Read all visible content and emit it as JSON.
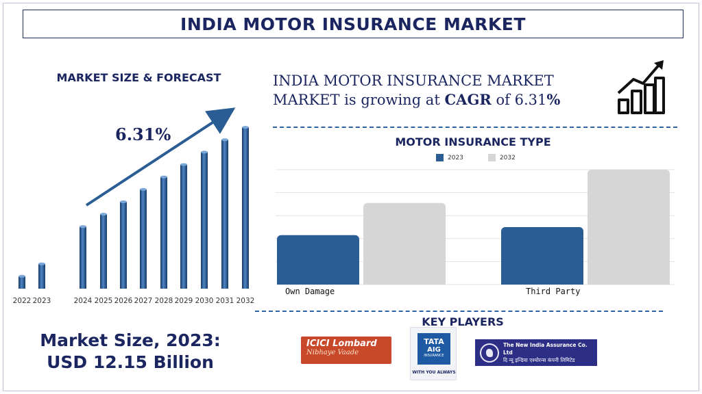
{
  "title": "INDIA MOTOR INSURANCE MARKET",
  "left_heading": "MARKET SIZE & FORECAST",
  "cagr_label": "6.31%",
  "market_text": {
    "line1": "INDIA MOTOR INSURANCE MARKET",
    "line2_prefix": "MARKET is growing at ",
    "line2_cagr": "CAGR",
    "line2_mid": " of 6.31",
    "line2_pct": "%"
  },
  "type_heading": "MOTOR INSURANCE TYPE",
  "key_players_heading": "KEY PLAYERS",
  "market_size": {
    "line1": "Market Size, 2023:",
    "line2": "USD 12.15 Billion"
  },
  "logos": {
    "icici_line1": "ICICI Lombard",
    "icici_line2": "Nibhaye Vaade",
    "tata_line1": "TATA",
    "tata_line2": "AIG",
    "tata_line3": "INSURANCE",
    "tata_tagline": "WITH YOU ALWAYS",
    "nia_line1": "The New India Assurance Co. Ltd",
    "nia_line2": "दि न्यू इन्डिया एश्योरन्स कंपनी लिमिटेड"
  },
  "icons": {
    "growth": "growth-chart-icon"
  },
  "colors": {
    "navy": "#1b2660",
    "bar_blue": "#2a5d94",
    "bar_grey": "#d6d6d6",
    "dash": "#2d61a6"
  },
  "chart_data": [
    {
      "type": "bar",
      "categories": [
        "2022",
        "2023",
        "2024",
        "2025",
        "2026",
        "2027",
        "2028",
        "2029",
        "2030",
        "2031",
        "2032"
      ],
      "values": [
        10,
        20,
        50,
        60,
        70,
        80,
        90,
        100,
        110,
        120,
        130
      ],
      "ylim": [
        0,
        140
      ],
      "annotation": "6.31%",
      "grid": false
    },
    {
      "type": "bar",
      "categories": [
        "Own Damage",
        "Third Party"
      ],
      "series": [
        {
          "name": "2023",
          "values": [
            43,
            50
          ]
        },
        {
          "name": "2032",
          "values": [
            71,
            100
          ]
        }
      ],
      "ylim": [
        0,
        100
      ],
      "grid": true,
      "legend": "top"
    }
  ]
}
